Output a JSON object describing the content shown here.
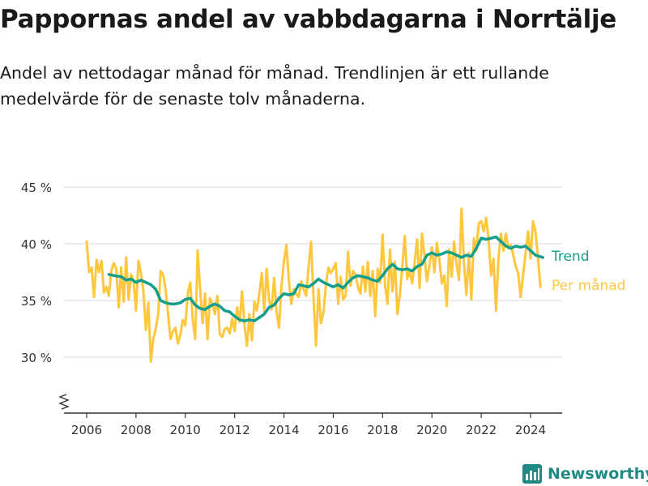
{
  "title": "Pappornas andel av vabbdagarna i Norrtälje",
  "subtitle": "Andel av nettodagar månad för månad. Trendlinjen är ett rullande medelvärde för de senaste tolv månaderna.",
  "brand": "Newsworthy",
  "colors": {
    "monthly": "#FFC73E",
    "trend": "#149E8C",
    "grid": "#d9d9d9",
    "axis": "#333333",
    "text": "#333333",
    "brand": "#1f8a84"
  },
  "chart_data": {
    "type": "line",
    "xlim": [
      2006,
      2024.5
    ],
    "ylim": [
      25,
      45
    ],
    "x_ticks": [
      "2006",
      "2008",
      "2010",
      "2012",
      "2014",
      "2016",
      "2018",
      "2020",
      "2022",
      "2024"
    ],
    "y_ticks": [
      "30 %",
      "35 %",
      "40 %",
      "45 %"
    ],
    "grid": true,
    "y_axis_break": true,
    "legend": "inline-right",
    "series": [
      {
        "name": "Trend",
        "key": "trend",
        "points": [
          [
            2006.9,
            37.3
          ],
          [
            2007.1,
            37.2
          ],
          [
            2007.4,
            37.1
          ],
          [
            2007.6,
            36.8
          ],
          [
            2007.8,
            36.9
          ],
          [
            2008.0,
            36.6
          ],
          [
            2008.2,
            36.8
          ],
          [
            2008.4,
            36.6
          ],
          [
            2008.6,
            36.4
          ],
          [
            2008.8,
            36.0
          ],
          [
            2009.0,
            35.0
          ],
          [
            2009.2,
            34.8
          ],
          [
            2009.4,
            34.7
          ],
          [
            2009.6,
            34.7
          ],
          [
            2009.8,
            34.8
          ],
          [
            2010.0,
            35.1
          ],
          [
            2010.2,
            35.2
          ],
          [
            2010.4,
            34.6
          ],
          [
            2010.6,
            34.3
          ],
          [
            2010.8,
            34.2
          ],
          [
            2011.0,
            34.5
          ],
          [
            2011.2,
            34.7
          ],
          [
            2011.4,
            34.5
          ],
          [
            2011.6,
            34.1
          ],
          [
            2011.8,
            34.0
          ],
          [
            2012.0,
            33.6
          ],
          [
            2012.2,
            33.3
          ],
          [
            2012.4,
            33.2
          ],
          [
            2012.6,
            33.3
          ],
          [
            2012.8,
            33.2
          ],
          [
            2013.0,
            33.5
          ],
          [
            2013.2,
            33.8
          ],
          [
            2013.4,
            34.4
          ],
          [
            2013.6,
            34.6
          ],
          [
            2013.8,
            35.2
          ],
          [
            2014.0,
            35.6
          ],
          [
            2014.2,
            35.5
          ],
          [
            2014.4,
            35.6
          ],
          [
            2014.6,
            36.4
          ],
          [
            2014.8,
            36.3
          ],
          [
            2015.0,
            36.2
          ],
          [
            2015.2,
            36.5
          ],
          [
            2015.4,
            36.9
          ],
          [
            2015.6,
            36.6
          ],
          [
            2015.8,
            36.4
          ],
          [
            2016.0,
            36.2
          ],
          [
            2016.2,
            36.4
          ],
          [
            2016.4,
            36.1
          ],
          [
            2016.6,
            36.6
          ],
          [
            2016.8,
            37.0
          ],
          [
            2017.0,
            37.2
          ],
          [
            2017.2,
            37.1
          ],
          [
            2017.4,
            37.0
          ],
          [
            2017.6,
            36.8
          ],
          [
            2017.8,
            36.7
          ],
          [
            2018.0,
            37.2
          ],
          [
            2018.2,
            37.8
          ],
          [
            2018.4,
            38.2
          ],
          [
            2018.6,
            37.8
          ],
          [
            2018.8,
            37.7
          ],
          [
            2019.0,
            37.8
          ],
          [
            2019.2,
            37.6
          ],
          [
            2019.4,
            38.0
          ],
          [
            2019.6,
            38.2
          ],
          [
            2019.8,
            39.0
          ],
          [
            2020.0,
            39.2
          ],
          [
            2020.2,
            39.0
          ],
          [
            2020.4,
            39.1
          ],
          [
            2020.6,
            39.3
          ],
          [
            2020.8,
            39.2
          ],
          [
            2021.0,
            39.0
          ],
          [
            2021.2,
            38.8
          ],
          [
            2021.4,
            39.0
          ],
          [
            2021.6,
            38.9
          ],
          [
            2021.8,
            39.6
          ],
          [
            2022.0,
            40.5
          ],
          [
            2022.2,
            40.4
          ],
          [
            2022.4,
            40.5
          ],
          [
            2022.6,
            40.6
          ],
          [
            2022.8,
            40.2
          ],
          [
            2023.0,
            39.8
          ],
          [
            2023.2,
            39.6
          ],
          [
            2023.4,
            39.8
          ],
          [
            2023.6,
            39.7
          ],
          [
            2023.8,
            39.8
          ],
          [
            2024.0,
            39.4
          ],
          [
            2024.2,
            39.0
          ],
          [
            2024.35,
            38.9
          ],
          [
            2024.5,
            38.8
          ]
        ]
      },
      {
        "name": "Per månad",
        "key": "monthly",
        "points": [
          [
            2006.0,
            40.2
          ],
          [
            2006.1,
            37.5
          ],
          [
            2006.2,
            37.9
          ],
          [
            2006.3,
            35.3
          ],
          [
            2006.4,
            38.6
          ],
          [
            2006.5,
            37.5
          ],
          [
            2006.6,
            38.5
          ],
          [
            2006.7,
            35.7
          ],
          [
            2006.8,
            36.2
          ],
          [
            2006.9,
            35.4
          ],
          [
            2007.0,
            37.6
          ],
          [
            2007.1,
            38.3
          ],
          [
            2007.2,
            37.8
          ],
          [
            2007.3,
            34.4
          ],
          [
            2007.4,
            37.9
          ],
          [
            2007.5,
            34.9
          ],
          [
            2007.6,
            38.8
          ],
          [
            2007.7,
            35.1
          ],
          [
            2007.8,
            37.3
          ],
          [
            2007.9,
            36.8
          ],
          [
            2008.0,
            34.1
          ],
          [
            2008.1,
            38.5
          ],
          [
            2008.2,
            37.4
          ],
          [
            2008.3,
            35.9
          ],
          [
            2008.4,
            32.4
          ],
          [
            2008.5,
            34.8
          ],
          [
            2008.6,
            29.6
          ],
          [
            2008.7,
            31.6
          ],
          [
            2008.8,
            32.5
          ],
          [
            2008.9,
            33.8
          ],
          [
            2009.0,
            37.6
          ],
          [
            2009.1,
            37.3
          ],
          [
            2009.2,
            36.0
          ],
          [
            2009.3,
            33.8
          ],
          [
            2009.4,
            31.6
          ],
          [
            2009.5,
            32.3
          ],
          [
            2009.6,
            32.6
          ],
          [
            2009.7,
            31.2
          ],
          [
            2009.8,
            32.0
          ],
          [
            2009.9,
            33.3
          ],
          [
            2010.0,
            32.8
          ],
          [
            2010.1,
            35.6
          ],
          [
            2010.2,
            36.6
          ],
          [
            2010.3,
            33.3
          ],
          [
            2010.4,
            31.6
          ],
          [
            2010.5,
            39.4
          ],
          [
            2010.6,
            36.1
          ],
          [
            2010.7,
            33.0
          ],
          [
            2010.8,
            35.6
          ],
          [
            2010.9,
            31.6
          ],
          [
            2011.0,
            35.2
          ],
          [
            2011.1,
            34.7
          ],
          [
            2011.2,
            33.8
          ],
          [
            2011.3,
            35.4
          ],
          [
            2011.4,
            32.0
          ],
          [
            2011.5,
            31.8
          ],
          [
            2011.6,
            32.5
          ],
          [
            2011.7,
            32.6
          ],
          [
            2011.8,
            32.1
          ],
          [
            2011.9,
            33.4
          ],
          [
            2012.0,
            32.3
          ],
          [
            2012.1,
            34.4
          ],
          [
            2012.2,
            33.1
          ],
          [
            2012.3,
            35.8
          ],
          [
            2012.4,
            32.9
          ],
          [
            2012.5,
            31.0
          ],
          [
            2012.6,
            33.8
          ],
          [
            2012.7,
            31.5
          ],
          [
            2012.8,
            34.9
          ],
          [
            2012.9,
            34.1
          ],
          [
            2013.0,
            35.6
          ],
          [
            2013.1,
            37.4
          ],
          [
            2013.2,
            34.0
          ],
          [
            2013.3,
            37.8
          ],
          [
            2013.4,
            35.0
          ],
          [
            2013.5,
            34.2
          ],
          [
            2013.6,
            37.0
          ],
          [
            2013.7,
            34.0
          ],
          [
            2013.8,
            32.6
          ],
          [
            2013.9,
            36.3
          ],
          [
            2014.0,
            38.5
          ],
          [
            2014.1,
            39.9
          ],
          [
            2014.2,
            36.8
          ],
          [
            2014.3,
            34.7
          ],
          [
            2014.4,
            36.0
          ],
          [
            2014.5,
            35.6
          ],
          [
            2014.6,
            35.3
          ],
          [
            2014.7,
            36.7
          ],
          [
            2014.8,
            36.0
          ],
          [
            2014.9,
            35.4
          ],
          [
            2015.0,
            38.0
          ],
          [
            2015.1,
            40.2
          ],
          [
            2015.2,
            35.2
          ],
          [
            2015.3,
            31.0
          ],
          [
            2015.4,
            36.0
          ],
          [
            2015.5,
            33.0
          ],
          [
            2015.6,
            33.9
          ],
          [
            2015.7,
            36.3
          ],
          [
            2015.8,
            37.9
          ],
          [
            2015.9,
            37.4
          ],
          [
            2016.0,
            37.8
          ],
          [
            2016.1,
            38.3
          ],
          [
            2016.2,
            34.7
          ],
          [
            2016.3,
            37.1
          ],
          [
            2016.4,
            35.1
          ],
          [
            2016.5,
            35.4
          ],
          [
            2016.6,
            39.3
          ],
          [
            2016.7,
            36.3
          ],
          [
            2016.8,
            37.6
          ],
          [
            2016.9,
            37.3
          ],
          [
            2017.0,
            36.2
          ],
          [
            2017.1,
            35.6
          ],
          [
            2017.2,
            38.0
          ],
          [
            2017.3,
            35.8
          ],
          [
            2017.4,
            38.4
          ],
          [
            2017.5,
            35.4
          ],
          [
            2017.6,
            37.6
          ],
          [
            2017.7,
            33.6
          ],
          [
            2017.8,
            37.8
          ],
          [
            2017.9,
            36.6
          ],
          [
            2018.0,
            40.8
          ],
          [
            2018.1,
            36.3
          ],
          [
            2018.2,
            34.7
          ],
          [
            2018.3,
            39.5
          ],
          [
            2018.4,
            35.8
          ],
          [
            2018.5,
            38.4
          ],
          [
            2018.6,
            33.8
          ],
          [
            2018.7,
            35.5
          ],
          [
            2018.8,
            38.0
          ],
          [
            2018.9,
            40.7
          ],
          [
            2019.0,
            36.9
          ],
          [
            2019.1,
            37.6
          ],
          [
            2019.2,
            36.5
          ],
          [
            2019.3,
            38.4
          ],
          [
            2019.4,
            40.4
          ],
          [
            2019.5,
            36.1
          ],
          [
            2019.6,
            40.9
          ],
          [
            2019.7,
            38.9
          ],
          [
            2019.8,
            36.7
          ],
          [
            2019.9,
            38.1
          ],
          [
            2020.0,
            39.7
          ],
          [
            2020.1,
            37.5
          ],
          [
            2020.2,
            40.1
          ],
          [
            2020.3,
            38.6
          ],
          [
            2020.4,
            36.5
          ],
          [
            2020.5,
            37.2
          ],
          [
            2020.6,
            34.5
          ],
          [
            2020.7,
            39.5
          ],
          [
            2020.8,
            37.1
          ],
          [
            2020.9,
            40.2
          ],
          [
            2021.0,
            38.2
          ],
          [
            2021.1,
            36.8
          ],
          [
            2021.2,
            43.1
          ],
          [
            2021.3,
            38.3
          ],
          [
            2021.4,
            35.5
          ],
          [
            2021.5,
            39.2
          ],
          [
            2021.6,
            35.1
          ],
          [
            2021.7,
            40.5
          ],
          [
            2021.8,
            39.4
          ],
          [
            2021.9,
            41.8
          ],
          [
            2022.0,
            42.0
          ],
          [
            2022.1,
            41.1
          ],
          [
            2022.2,
            42.3
          ],
          [
            2022.3,
            40.4
          ],
          [
            2022.4,
            37.2
          ],
          [
            2022.5,
            38.7
          ],
          [
            2022.6,
            34.1
          ],
          [
            2022.7,
            38.8
          ],
          [
            2022.8,
            40.9
          ],
          [
            2022.9,
            39.4
          ],
          [
            2023.0,
            40.9
          ],
          [
            2023.1,
            39.6
          ],
          [
            2023.2,
            39.9
          ],
          [
            2023.3,
            39.0
          ],
          [
            2023.4,
            38.0
          ],
          [
            2023.5,
            37.4
          ],
          [
            2023.6,
            35.3
          ],
          [
            2023.7,
            37.3
          ],
          [
            2023.8,
            39.2
          ],
          [
            2023.9,
            41.1
          ],
          [
            2024.0,
            38.7
          ],
          [
            2024.1,
            42.0
          ],
          [
            2024.2,
            41.1
          ],
          [
            2024.3,
            38.8
          ],
          [
            2024.4,
            36.2
          ]
        ]
      }
    ]
  }
}
